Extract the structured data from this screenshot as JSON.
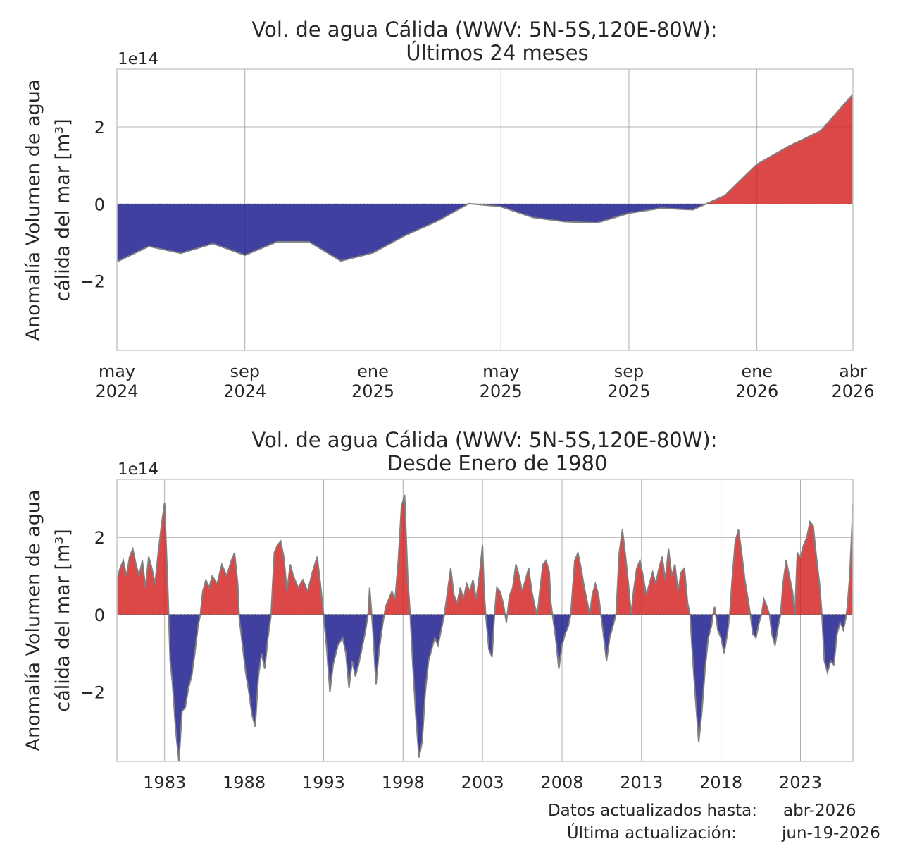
{
  "chart_data": [
    {
      "type": "area",
      "title_line1": "Vol. de agua Cálida (WWV: 5N-5S,120E-80W):",
      "title_line2": "Últimos 24 meses",
      "ylabel_line1": "Anomalía Volumen de agua",
      "ylabel_line2": "cálida del mar [m³]",
      "y_exponent_label": "1e14",
      "ylim": [
        -3.8,
        3.5
      ],
      "yticks": [
        2,
        0,
        -2
      ],
      "ytick_labels": [
        "2",
        "0",
        "−2"
      ],
      "xlim": [
        0,
        23
      ],
      "xticks": [
        0,
        4,
        8,
        12,
        16,
        20,
        23
      ],
      "xtick_labels": [
        [
          "may",
          "2024"
        ],
        [
          "sep",
          "2024"
        ],
        [
          "ene",
          "2025"
        ],
        [
          "may",
          "2025"
        ],
        [
          "sep",
          "2025"
        ],
        [
          "ene",
          "2026"
        ],
        [
          "abr",
          "2026"
        ]
      ],
      "x": [
        "may-2024",
        "jun-2024",
        "jul-2024",
        "ago-2024",
        "sep-2024",
        "oct-2024",
        "nov-2024",
        "dic-2024",
        "ene-2025",
        "feb-2025",
        "mar-2025",
        "abr-2025",
        "may-2025",
        "jun-2025",
        "jul-2025",
        "ago-2025",
        "sep-2025",
        "oct-2025",
        "nov-2025",
        "dic-2025",
        "ene-2026",
        "feb-2026",
        "mar-2026",
        "abr-2026"
      ],
      "values": [
        -1.5,
        -1.1,
        -1.28,
        -1.03,
        -1.33,
        -0.98,
        -0.98,
        -1.48,
        -1.27,
        -0.82,
        -0.45,
        0.01,
        -0.07,
        -0.35,
        -0.46,
        -0.49,
        -0.24,
        -0.11,
        -0.15,
        0.22,
        1.03,
        1.5,
        1.9,
        2.85
      ],
      "positive_color": "#d62728",
      "negative_color": "#1f1f8f",
      "grid": true
    },
    {
      "type": "area",
      "title_line1": "Vol. de agua Cálida (WWV: 5N-5S,120E-80W):",
      "title_line2": "Desde Enero de 1980",
      "ylabel_line1": "Anomalía Volumen de agua",
      "ylabel_line2": "cálida del mar [m³]",
      "y_exponent_label": "1e14",
      "ylim": [
        -3.8,
        3.5
      ],
      "yticks": [
        2,
        0,
        -2
      ],
      "ytick_labels": [
        "2",
        "0",
        "−2"
      ],
      "xlim": [
        1980.0,
        2026.3
      ],
      "xticks": [
        1983,
        1988,
        1993,
        1998,
        2003,
        2008,
        2013,
        2018,
        2023
      ],
      "xtick_labels": [
        "1983",
        "1988",
        "1993",
        "1998",
        "2003",
        "2008",
        "2013",
        "2018",
        "2023"
      ],
      "points": [
        [
          1980.0,
          0.9
        ],
        [
          1980.2,
          1.2
        ],
        [
          1980.4,
          1.4
        ],
        [
          1980.6,
          1.0
        ],
        [
          1980.8,
          1.5
        ],
        [
          1981.0,
          1.7
        ],
        [
          1981.2,
          1.3
        ],
        [
          1981.4,
          1.0
        ],
        [
          1981.6,
          1.4
        ],
        [
          1981.8,
          0.7
        ],
        [
          1982.0,
          1.5
        ],
        [
          1982.2,
          1.2
        ],
        [
          1982.4,
          0.8
        ],
        [
          1982.6,
          1.6
        ],
        [
          1982.8,
          2.3
        ],
        [
          1983.0,
          2.9
        ],
        [
          1983.2,
          0.7
        ],
        [
          1983.35,
          -1.2
        ],
        [
          1983.5,
          -1.8
        ],
        [
          1983.7,
          -3.0
        ],
        [
          1983.9,
          -3.8
        ],
        [
          1984.1,
          -2.5
        ],
        [
          1984.3,
          -2.4
        ],
        [
          1984.5,
          -1.9
        ],
        [
          1984.7,
          -1.6
        ],
        [
          1984.9,
          -1.0
        ],
        [
          1985.1,
          -0.3
        ],
        [
          1985.25,
          0.0
        ],
        [
          1985.4,
          0.6
        ],
        [
          1985.6,
          0.9
        ],
        [
          1985.8,
          0.7
        ],
        [
          1986.0,
          1.0
        ],
        [
          1986.3,
          0.8
        ],
        [
          1986.6,
          1.3
        ],
        [
          1986.9,
          1.0
        ],
        [
          1987.2,
          1.4
        ],
        [
          1987.4,
          1.6
        ],
        [
          1987.6,
          0.8
        ],
        [
          1987.7,
          -0.1
        ],
        [
          1987.9,
          -0.8
        ],
        [
          1988.1,
          -1.5
        ],
        [
          1988.3,
          -2.0
        ],
        [
          1988.5,
          -2.6
        ],
        [
          1988.7,
          -2.9
        ],
        [
          1988.9,
          -1.6
        ],
        [
          1989.1,
          -1.0
        ],
        [
          1989.3,
          -1.4
        ],
        [
          1989.5,
          -0.6
        ],
        [
          1989.7,
          0.0
        ],
        [
          1989.9,
          1.6
        ],
        [
          1990.1,
          1.8
        ],
        [
          1990.3,
          1.9
        ],
        [
          1990.5,
          1.5
        ],
        [
          1990.7,
          0.6
        ],
        [
          1990.9,
          1.3
        ],
        [
          1991.1,
          1.0
        ],
        [
          1991.4,
          0.7
        ],
        [
          1991.7,
          0.9
        ],
        [
          1992.0,
          0.6
        ],
        [
          1992.3,
          1.1
        ],
        [
          1992.6,
          1.5
        ],
        [
          1992.8,
          0.8
        ],
        [
          1993.0,
          0.0
        ],
        [
          1993.2,
          -0.9
        ],
        [
          1993.4,
          -2.0
        ],
        [
          1993.6,
          -1.3
        ],
        [
          1993.9,
          -0.8
        ],
        [
          1994.2,
          -0.6
        ],
        [
          1994.4,
          -1.0
        ],
        [
          1994.6,
          -1.9
        ],
        [
          1994.8,
          -1.2
        ],
        [
          1995.0,
          -1.6
        ],
        [
          1995.2,
          -1.3
        ],
        [
          1995.4,
          -0.9
        ],
        [
          1995.6,
          -0.5
        ],
        [
          1995.8,
          0.0
        ],
        [
          1995.9,
          0.7
        ],
        [
          1996.1,
          -0.4
        ],
        [
          1996.3,
          -1.8
        ],
        [
          1996.5,
          -0.9
        ],
        [
          1996.7,
          -0.3
        ],
        [
          1996.9,
          0.2
        ],
        [
          1997.1,
          0.4
        ],
        [
          1997.3,
          0.6
        ],
        [
          1997.5,
          0.4
        ],
        [
          1997.7,
          1.4
        ],
        [
          1997.9,
          2.8
        ],
        [
          1998.1,
          3.1
        ],
        [
          1998.3,
          0.9
        ],
        [
          1998.45,
          0.0
        ],
        [
          1998.6,
          -1.2
        ],
        [
          1998.8,
          -2.6
        ],
        [
          1999.0,
          -3.7
        ],
        [
          1999.2,
          -3.3
        ],
        [
          1999.4,
          -2.0
        ],
        [
          1999.6,
          -1.2
        ],
        [
          1999.8,
          -0.9
        ],
        [
          2000.0,
          -0.6
        ],
        [
          2000.2,
          -0.8
        ],
        [
          2000.4,
          -0.4
        ],
        [
          2000.6,
          0.0
        ],
        [
          2000.8,
          0.6
        ],
        [
          2001.0,
          1.2
        ],
        [
          2001.2,
          0.5
        ],
        [
          2001.4,
          0.3
        ],
        [
          2001.6,
          0.7
        ],
        [
          2001.8,
          0.4
        ],
        [
          2002.0,
          0.8
        ],
        [
          2002.2,
          0.6
        ],
        [
          2002.4,
          0.9
        ],
        [
          2002.6,
          0.4
        ],
        [
          2002.8,
          1.0
        ],
        [
          2003.0,
          1.8
        ],
        [
          2003.1,
          0.6
        ],
        [
          2003.2,
          0.0
        ],
        [
          2003.4,
          -0.9
        ],
        [
          2003.6,
          -1.1
        ],
        [
          2003.75,
          0.0
        ],
        [
          2003.9,
          0.7
        ],
        [
          2004.1,
          0.6
        ],
        [
          2004.3,
          0.3
        ],
        [
          2004.5,
          -0.2
        ],
        [
          2004.7,
          0.5
        ],
        [
          2004.9,
          0.7
        ],
        [
          2005.1,
          1.3
        ],
        [
          2005.3,
          1.0
        ],
        [
          2005.5,
          0.6
        ],
        [
          2005.7,
          0.9
        ],
        [
          2005.9,
          1.2
        ],
        [
          2006.1,
          0.6
        ],
        [
          2006.3,
          0.2
        ],
        [
          2006.45,
          0.0
        ],
        [
          2006.6,
          0.6
        ],
        [
          2006.8,
          1.3
        ],
        [
          2007.0,
          1.4
        ],
        [
          2007.2,
          1.1
        ],
        [
          2007.3,
          0.3
        ],
        [
          2007.4,
          0.0
        ],
        [
          2007.6,
          -0.6
        ],
        [
          2007.8,
          -1.4
        ],
        [
          2008.0,
          -0.8
        ],
        [
          2008.2,
          -0.5
        ],
        [
          2008.4,
          -0.3
        ],
        [
          2008.55,
          0.0
        ],
        [
          2008.8,
          1.4
        ],
        [
          2009.0,
          1.6
        ],
        [
          2009.2,
          1.2
        ],
        [
          2009.4,
          0.7
        ],
        [
          2009.6,
          0.3
        ],
        [
          2009.75,
          0.0
        ],
        [
          2009.9,
          0.5
        ],
        [
          2010.1,
          0.8
        ],
        [
          2010.3,
          0.5
        ],
        [
          2010.45,
          0.0
        ],
        [
          2010.6,
          -0.5
        ],
        [
          2010.8,
          -1.2
        ],
        [
          2011.0,
          -0.6
        ],
        [
          2011.2,
          -0.3
        ],
        [
          2011.4,
          0.0
        ],
        [
          2011.6,
          1.6
        ],
        [
          2011.8,
          2.2
        ],
        [
          2012.0,
          1.5
        ],
        [
          2012.2,
          0.7
        ],
        [
          2012.35,
          0.0
        ],
        [
          2012.5,
          0.6
        ],
        [
          2012.7,
          1.2
        ],
        [
          2012.9,
          1.4
        ],
        [
          2013.1,
          1.0
        ],
        [
          2013.3,
          0.5
        ],
        [
          2013.5,
          0.8
        ],
        [
          2013.7,
          1.1
        ],
        [
          2013.9,
          0.8
        ],
        [
          2014.1,
          1.2
        ],
        [
          2014.3,
          1.5
        ],
        [
          2014.5,
          0.9
        ],
        [
          2014.7,
          1.7
        ],
        [
          2014.9,
          1.0
        ],
        [
          2015.1,
          1.3
        ],
        [
          2015.3,
          0.6
        ],
        [
          2015.5,
          1.1
        ],
        [
          2015.7,
          1.2
        ],
        [
          2015.9,
          0.3
        ],
        [
          2016.05,
          0.0
        ],
        [
          2016.2,
          -1.0
        ],
        [
          2016.4,
          -2.2
        ],
        [
          2016.6,
          -3.3
        ],
        [
          2016.8,
          -2.5
        ],
        [
          2017.0,
          -1.4
        ],
        [
          2017.2,
          -0.6
        ],
        [
          2017.4,
          -0.3
        ],
        [
          2017.5,
          0.0
        ],
        [
          2017.6,
          0.2
        ],
        [
          2017.8,
          -0.4
        ],
        [
          2018.0,
          -0.6
        ],
        [
          2018.2,
          -1.0
        ],
        [
          2018.4,
          -0.5
        ],
        [
          2018.55,
          0.0
        ],
        [
          2018.7,
          0.9
        ],
        [
          2018.9,
          1.9
        ],
        [
          2019.1,
          2.2
        ],
        [
          2019.3,
          1.6
        ],
        [
          2019.5,
          0.9
        ],
        [
          2019.7,
          0.4
        ],
        [
          2019.85,
          0.0
        ],
        [
          2020.0,
          -0.5
        ],
        [
          2020.2,
          -0.6
        ],
        [
          2020.4,
          -0.2
        ],
        [
          2020.55,
          0.0
        ],
        [
          2020.7,
          0.4
        ],
        [
          2020.9,
          0.2
        ],
        [
          2021.05,
          0.0
        ],
        [
          2021.2,
          -0.5
        ],
        [
          2021.4,
          -0.8
        ],
        [
          2021.6,
          -0.3
        ],
        [
          2021.75,
          0.0
        ],
        [
          2021.9,
          0.8
        ],
        [
          2022.1,
          1.4
        ],
        [
          2022.3,
          1.0
        ],
        [
          2022.5,
          0.6
        ],
        [
          2022.65,
          0.0
        ],
        [
          2022.8,
          1.6
        ],
        [
          2023.0,
          1.5
        ],
        [
          2023.2,
          1.8
        ],
        [
          2023.4,
          2.0
        ],
        [
          2023.6,
          2.4
        ],
        [
          2023.8,
          2.3
        ],
        [
          2024.0,
          1.5
        ],
        [
          2024.2,
          0.8
        ],
        [
          2024.35,
          0.0
        ],
        [
          2024.5,
          -1.2
        ],
        [
          2024.7,
          -1.5
        ],
        [
          2024.9,
          -1.2
        ],
        [
          2025.1,
          -1.3
        ],
        [
          2025.3,
          -0.5
        ],
        [
          2025.5,
          -0.2
        ],
        [
          2025.7,
          -0.4
        ],
        [
          2025.85,
          -0.1
        ],
        [
          2025.95,
          0.2
        ],
        [
          2026.1,
          1.0
        ],
        [
          2026.2,
          1.9
        ],
        [
          2026.3,
          2.85
        ]
      ],
      "positive_color": "#d62728",
      "negative_color": "#1f1f8f",
      "grid": true
    }
  ],
  "footer": {
    "label1": "Datos actualizados hasta:",
    "value1": "abr-2026",
    "label2": "Última actualización:",
    "value2": "jun-19-2026"
  }
}
